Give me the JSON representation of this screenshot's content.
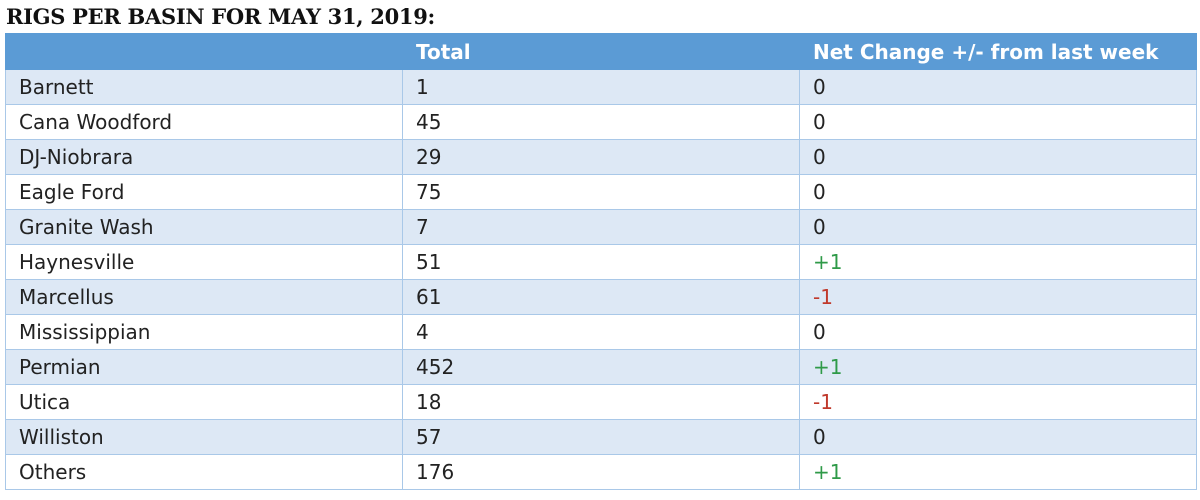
{
  "title": "RIGS PER BASIN FOR MAY 31, 2019:",
  "table": {
    "columns": [
      "Total",
      "Net Change +/- from last week"
    ],
    "rows": [
      [
        "Barnett",
        "1",
        "0"
      ],
      [
        "Cana Woodford",
        "45",
        "0"
      ],
      [
        "DJ-Niobrara",
        "29",
        "0"
      ],
      [
        "Eagle Ford",
        "75",
        "0"
      ],
      [
        "Granite Wash",
        "7",
        "0"
      ],
      [
        "Haynesville",
        "51",
        "+1"
      ],
      [
        "Marcellus",
        "61",
        "-1"
      ],
      [
        "Mississippian",
        "4",
        "0"
      ],
      [
        "Permian",
        "452",
        "+1"
      ],
      [
        "Utica",
        "18",
        "-1"
      ],
      [
        "Williston",
        "57",
        "0"
      ],
      [
        "Others",
        "176",
        "+1"
      ]
    ],
    "change_colors": {
      "positive": "#2f9a48",
      "negative": "#c0392b"
    }
  }
}
